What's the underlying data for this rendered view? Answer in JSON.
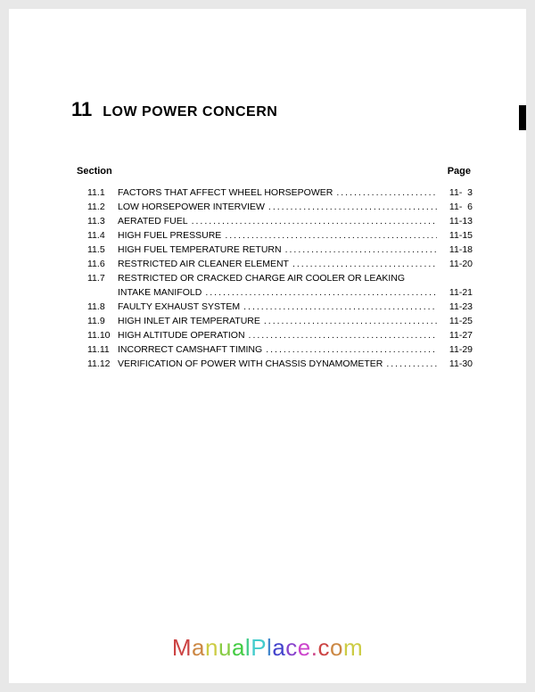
{
  "chapter": {
    "number": "11",
    "title": "LOW POWER CONCERN"
  },
  "headings": {
    "section": "Section",
    "page": "Page"
  },
  "toc": [
    {
      "num": "11.1",
      "title": "FACTORS THAT AFFECT WHEEL HORSEPOWER",
      "page": "11-  3"
    },
    {
      "num": "11.2",
      "title": "LOW HORSEPOWER INTERVIEW",
      "page": "11-  6"
    },
    {
      "num": "11.3",
      "title": "AERATED FUEL",
      "page": "11-13"
    },
    {
      "num": "11.4",
      "title": "HIGH FUEL PRESSURE",
      "page": "11-15"
    },
    {
      "num": "11.5",
      "title": "HIGH FUEL TEMPERATURE RETURN",
      "page": "11-18"
    },
    {
      "num": "11.6",
      "title": "RESTRICTED AIR CLEANER ELEMENT",
      "page": "11-20"
    },
    {
      "num": "11.7",
      "title": "RESTRICTED OR CRACKED CHARGE AIR COOLER OR LEAKING",
      "page": ""
    },
    {
      "num": "",
      "title": "INTAKE MANIFOLD",
      "page": "11-21",
      "cont": true
    },
    {
      "num": "11.8",
      "title": "FAULTY EXHAUST SYSTEM",
      "page": "11-23"
    },
    {
      "num": "11.9",
      "title": "HIGH INLET AIR TEMPERATURE",
      "page": "11-25"
    },
    {
      "num": "11.10",
      "title": "HIGH ALTITUDE OPERATION",
      "page": "11-27"
    },
    {
      "num": "11.11",
      "title": "INCORRECT CAMSHAFT TIMING",
      "page": "11-29"
    },
    {
      "num": "11.12",
      "title": "VERIFICATION OF POWER WITH CHASSIS DYNAMOMETER",
      "page": "11-30"
    }
  ],
  "watermark": {
    "text": "ManualPlace.com"
  }
}
